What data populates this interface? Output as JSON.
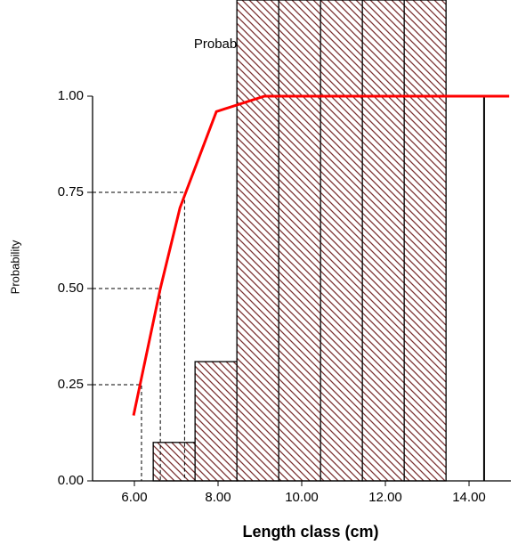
{
  "chart_data": {
    "type": "line",
    "title": "Probability of Capture",
    "xlabel": "Length class (cm)",
    "ylabel": "Probability",
    "xlim": [
      5,
      15
    ],
    "ylim": [
      0,
      1.25
    ],
    "xticks": [
      {
        "value": 6,
        "label": "6.00"
      },
      {
        "value": 8,
        "label": "8.00"
      },
      {
        "value": 10,
        "label": "10.00"
      },
      {
        "value": 12,
        "label": "12.00"
      },
      {
        "value": 14,
        "label": "14.00"
      }
    ],
    "yticks": [
      {
        "value": 0,
        "label": "0.00"
      },
      {
        "value": 0.25,
        "label": "0.25"
      },
      {
        "value": 0.5,
        "label": "0.50"
      },
      {
        "value": 0.75,
        "label": "0.75"
      },
      {
        "value": 1,
        "label": "1.00"
      }
    ],
    "series": [
      {
        "name": "Probability of Capture",
        "color": "#ff0000",
        "x": [
          5.98,
          6.62,
          7.09,
          7.96,
          9.11,
          14.96
        ],
        "values": [
          0.17,
          0.5,
          0.71,
          0.96,
          1.0,
          1.0
        ]
      }
    ],
    "histogram": {
      "color": "#7a3030",
      "bins": [
        6.45,
        7.45,
        8.45,
        9.45,
        10.45,
        11.45,
        12.45,
        13.45
      ],
      "values": [
        0.1,
        0.31,
        1.25,
        1.25,
        1.25,
        1.25,
        1.25
      ]
    },
    "reference_lines": {
      "x": [
        6.17,
        6.62,
        7.2
      ],
      "values": [
        0.25,
        0.5,
        0.75
      ]
    },
    "marker_line": {
      "x": 14.36,
      "value": 1.0
    }
  }
}
